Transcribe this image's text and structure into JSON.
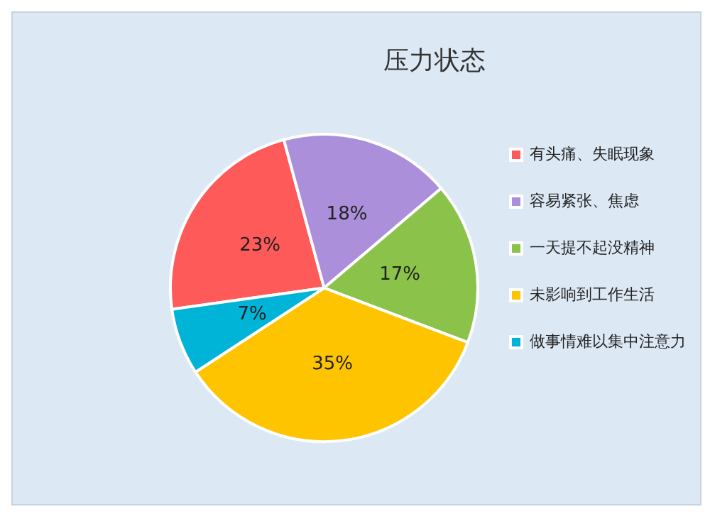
{
  "chart_data": {
    "type": "pie",
    "title": "压力状态",
    "categories": [
      "有头痛、失眠现象",
      "容易紧张、焦虑",
      "一天提不起没精神",
      "未影响到工作生活",
      "做事情难以集中注意力"
    ],
    "values": [
      23,
      18,
      17,
      35,
      7
    ],
    "colors": [
      "#ff5a5a",
      "#ab8fda",
      "#8bc34a",
      "#ffc400",
      "#00b4d8"
    ],
    "value_labels": [
      "23%",
      "18%",
      "17%",
      "35%",
      "7%"
    ],
    "legend": "right"
  }
}
